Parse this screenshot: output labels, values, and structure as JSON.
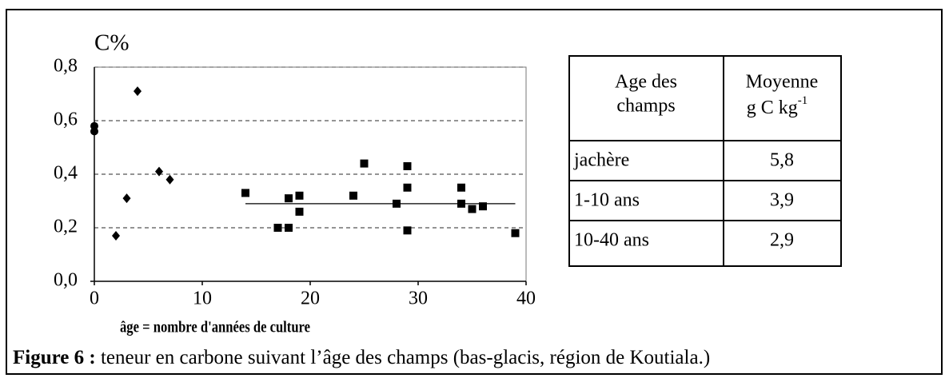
{
  "chart_data": {
    "type": "scatter",
    "ylabel": "C%",
    "xlabel": "âge = nombre d'années de culture",
    "xlim": [
      0,
      40
    ],
    "xticks": [
      0,
      10,
      20,
      30,
      40
    ],
    "ylim": [
      0,
      0.8
    ],
    "yticks": [
      {
        "value": 0,
        "label": "0,0"
      },
      {
        "value": 0.2,
        "label": "0,2"
      },
      {
        "value": 0.4,
        "label": "0,4"
      },
      {
        "value": 0.6,
        "label": "0,6"
      },
      {
        "value": 0.8,
        "label": "0,8"
      }
    ],
    "grid": true,
    "series": [
      {
        "marker": "circle",
        "color": "#000000",
        "x": [
          0,
          0
        ],
        "values": [
          0.58,
          0.56
        ]
      },
      {
        "marker": "diamond",
        "color": "#000000",
        "x": [
          2,
          3,
          4,
          6,
          7
        ],
        "values": [
          0.17,
          0.31,
          0.71,
          0.41,
          0.38
        ]
      },
      {
        "marker": "square",
        "color": "#000000",
        "x": [
          14,
          17,
          18,
          18,
          19,
          19,
          24,
          25,
          28,
          29,
          29,
          29,
          34,
          34,
          35,
          36,
          39
        ],
        "values": [
          0.33,
          0.2,
          0.2,
          0.31,
          0.32,
          0.26,
          0.32,
          0.44,
          0.29,
          0.43,
          0.35,
          0.19,
          0.35,
          0.29,
          0.27,
          0.28,
          0.18
        ]
      }
    ],
    "mean_line": {
      "x": [
        14,
        39
      ],
      "values": [
        0.29,
        0.29
      ]
    }
  },
  "table": {
    "header": {
      "col1": [
        "Age des",
        "champs"
      ],
      "col2_line1": "Moyenne",
      "col2_unit": "g C kg",
      "col2_exp": "-1"
    },
    "rows": [
      [
        "jachère",
        "5,8"
      ],
      [
        "1-10 ans",
        "3,9"
      ],
      [
        "10-40 ans",
        "2,9"
      ]
    ]
  },
  "caption": {
    "label": "Figure 6 :",
    "text": " teneur en carbone suivant l’âge des champs (bas-glacis, région de Koutiala.)"
  }
}
